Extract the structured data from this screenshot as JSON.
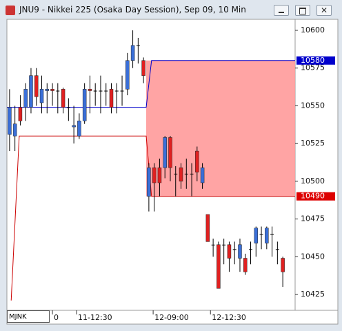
{
  "window_title": "JNU9 - Nikkei 225 (Osaka Day Session), Sep 09, 10 Min",
  "symbol_input": "MJNK",
  "chart_data": {
    "type": "candlestick",
    "up_color": "#3a6fd8",
    "down_color": "#e02020",
    "ylim": [
      10414.5,
      10607.3
    ],
    "yticks": [
      10425,
      10450,
      10475,
      10500,
      10525,
      10550,
      10575,
      10600
    ],
    "xlim": [
      -0.5,
      53.3
    ],
    "xticks": [
      {
        "value": 8,
        "label": "0"
      },
      {
        "value": 12.5,
        "label": "11-12:30"
      },
      {
        "value": 26.8,
        "label": "12-09:00"
      },
      {
        "value": 37.5,
        "label": "12-12:30"
      }
    ],
    "open": [
      10531,
      10530,
      10549,
      10549,
      10549,
      10570,
      10552,
      10560,
      10561,
      10560,
      10561,
      10549,
      10536,
      10530,
      10540,
      10561,
      10560,
      10560,
      10560,
      10561,
      10560,
      10560,
      10561,
      10580,
      10590,
      10580,
      10490,
      10509,
      10509,
      10509,
      10529,
      10505,
      10509,
      10505,
      10505,
      10520,
      10499,
      10478,
      10458,
      10458,
      10458,
      10458,
      10455,
      10449,
      10449,
      10455,
      10459,
      10465,
      10459,
      10465,
      10455,
      10449
    ],
    "high": [
      10561,
      10550,
      10557,
      10565,
      10575,
      10575,
      10570,
      10565,
      10565,
      10565,
      10562,
      10555,
      10550,
      10545,
      10565,
      10570,
      10565,
      10570,
      10565,
      10565,
      10565,
      10570,
      10585,
      10600,
      10595,
      10582,
      10512,
      10512,
      10515,
      10530,
      10530,
      10510,
      10512,
      10515,
      10512,
      10523,
      10512,
      10478,
      10462,
      10460,
      10462,
      10460,
      10460,
      10462,
      10452,
      10460,
      10470,
      10470,
      10470,
      10470,
      10460,
      10450
    ],
    "low": [
      10520,
      10520,
      10537,
      10540,
      10545,
      10550,
      10545,
      10545,
      10550,
      10545,
      10545,
      10540,
      10525,
      10528,
      10538,
      10545,
      10550,
      10545,
      10550,
      10545,
      10545,
      10550,
      10557,
      10575,
      10578,
      10565,
      10480,
      10480,
      10490,
      10502,
      10500,
      10490,
      10495,
      10495,
      10490,
      10500,
      10495,
      10460,
      10450,
      10429,
      10445,
      10440,
      10445,
      10440,
      10438,
      10445,
      10450,
      10455,
      10455,
      10450,
      10445,
      10430
    ],
    "close": [
      10549,
      10538,
      10540,
      10561,
      10570,
      10556,
      10561,
      10561,
      10560,
      10560,
      10549,
      10549,
      10537,
      10540,
      10561,
      10560,
      10560,
      10560,
      10560,
      10549,
      10560,
      10560,
      10580,
      10590,
      10590,
      10570,
      10509,
      10499,
      10499,
      10529,
      10509,
      10505,
      10500,
      10505,
      10505,
      10506,
      10509,
      10460,
      10458,
      10429,
      10458,
      10449,
      10455,
      10458,
      10440,
      10455,
      10469,
      10465,
      10469,
      10465,
      10455,
      10440
    ],
    "overlays": [
      {
        "color": "#0000cc",
        "x": [
          -0.5,
          25.5,
          26.5,
          53.3
        ],
        "values": [
          10549,
          10549,
          10580,
          10580
        ]
      },
      {
        "color": "#cc0000",
        "x": [
          0.3,
          1.8,
          25.5,
          26.5,
          53.3
        ],
        "values": [
          10421,
          10530,
          10530,
          10490,
          10490
        ]
      }
    ],
    "shade": {
      "color": "#ff9a9a",
      "x_start": 25.5
    },
    "price_labels": [
      {
        "value": 10580,
        "color": "#0000cc"
      },
      {
        "value": 10490,
        "color": "#dd0000"
      }
    ]
  }
}
